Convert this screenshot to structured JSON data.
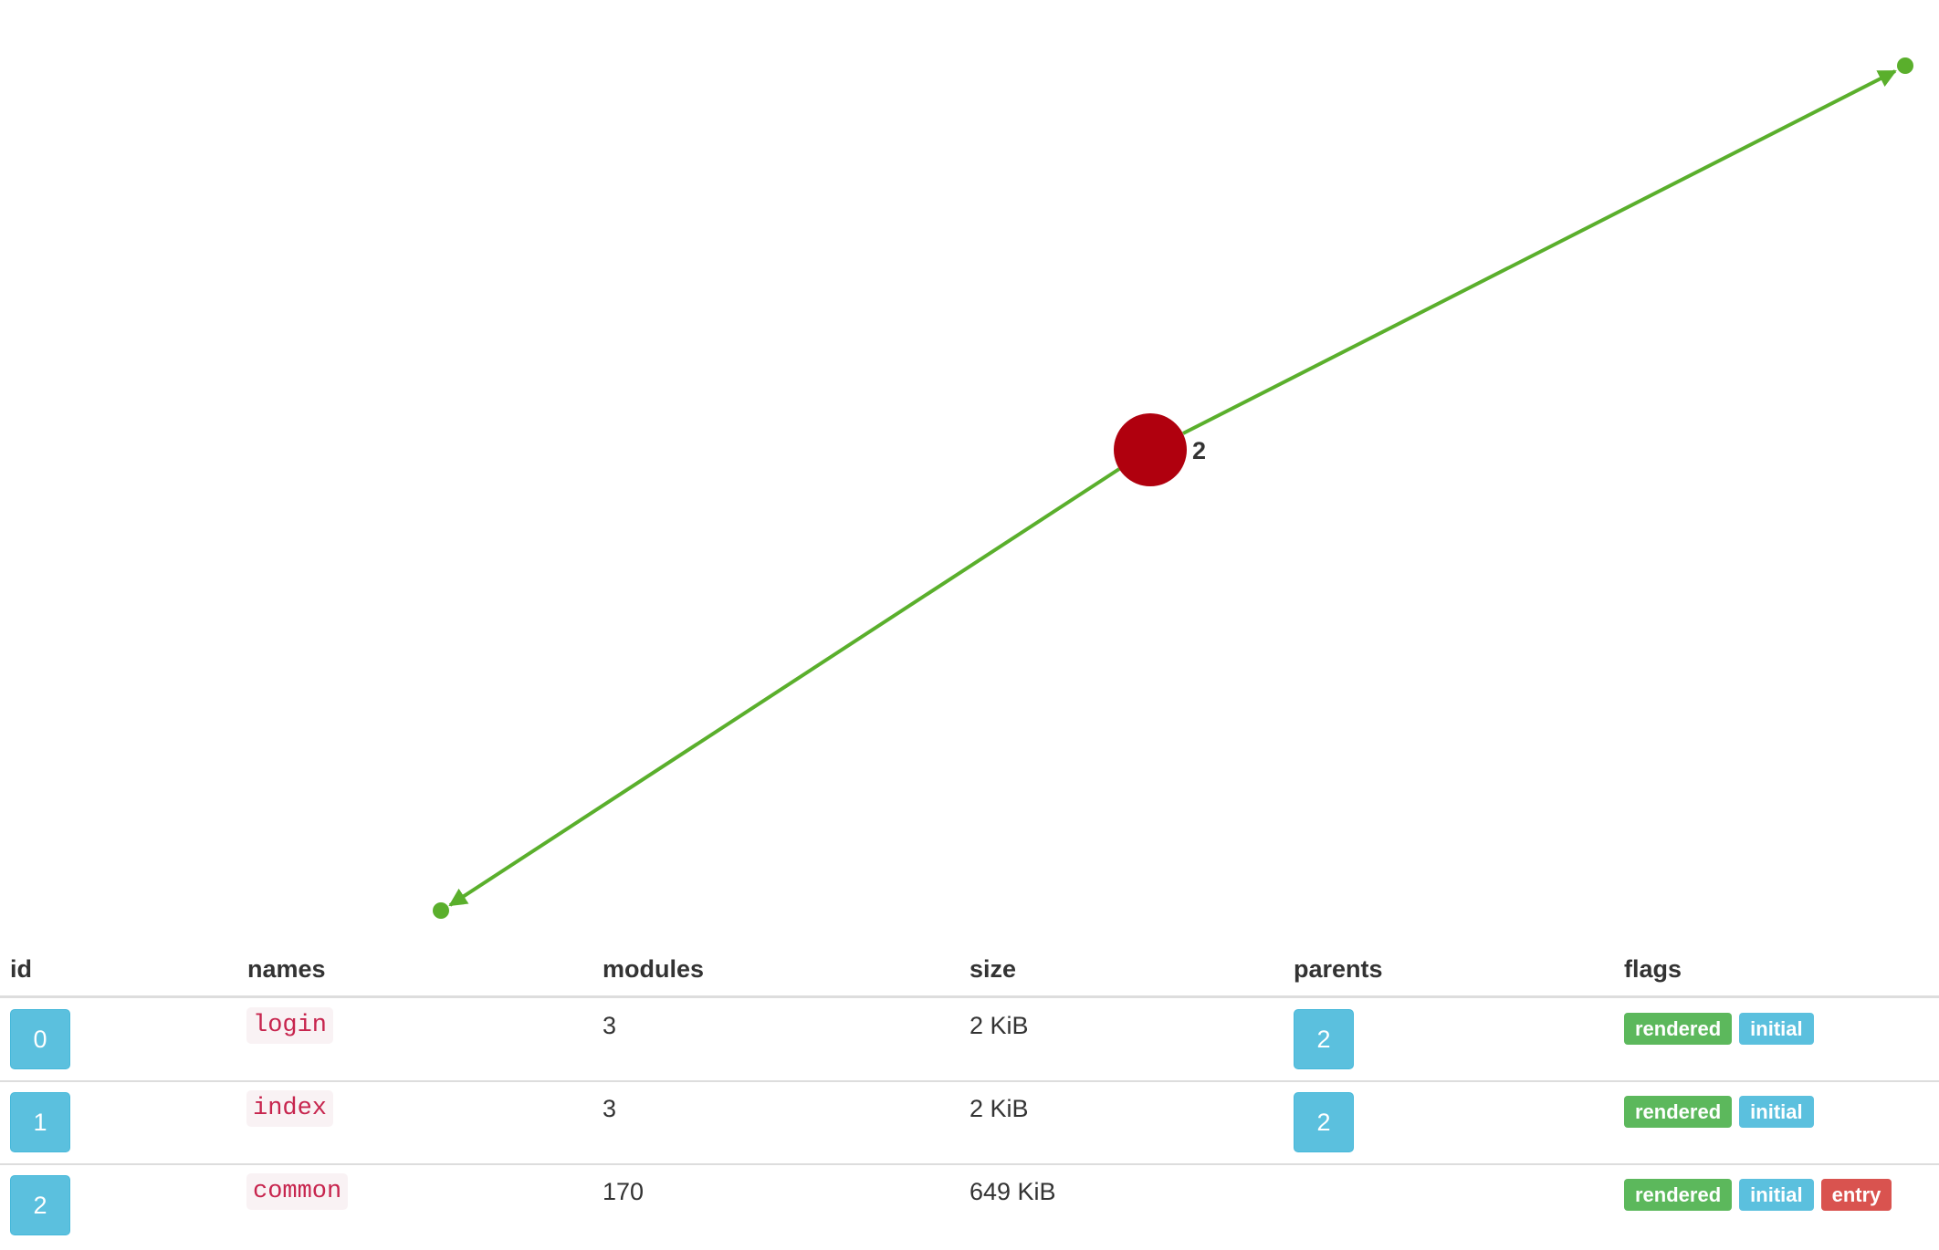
{
  "graph": {
    "node_label": "2"
  },
  "table": {
    "headers": [
      "id",
      "names",
      "modules",
      "size",
      "parents",
      "flags"
    ],
    "rows": [
      {
        "id": 0,
        "names": "login",
        "modules": 3,
        "size": "2 KiB",
        "parents": 2,
        "flags": [
          "rendered",
          "initial"
        ]
      },
      {
        "id": 1,
        "names": "index",
        "modules": 3,
        "size": "2 KiB",
        "parents": 2,
        "flags": [
          "rendered",
          "initial"
        ]
      },
      {
        "id": 2,
        "names": "common",
        "modules": 170,
        "size": "649 KiB",
        "flags": [
          "rendered",
          "initial",
          "entry"
        ]
      }
    ]
  }
}
